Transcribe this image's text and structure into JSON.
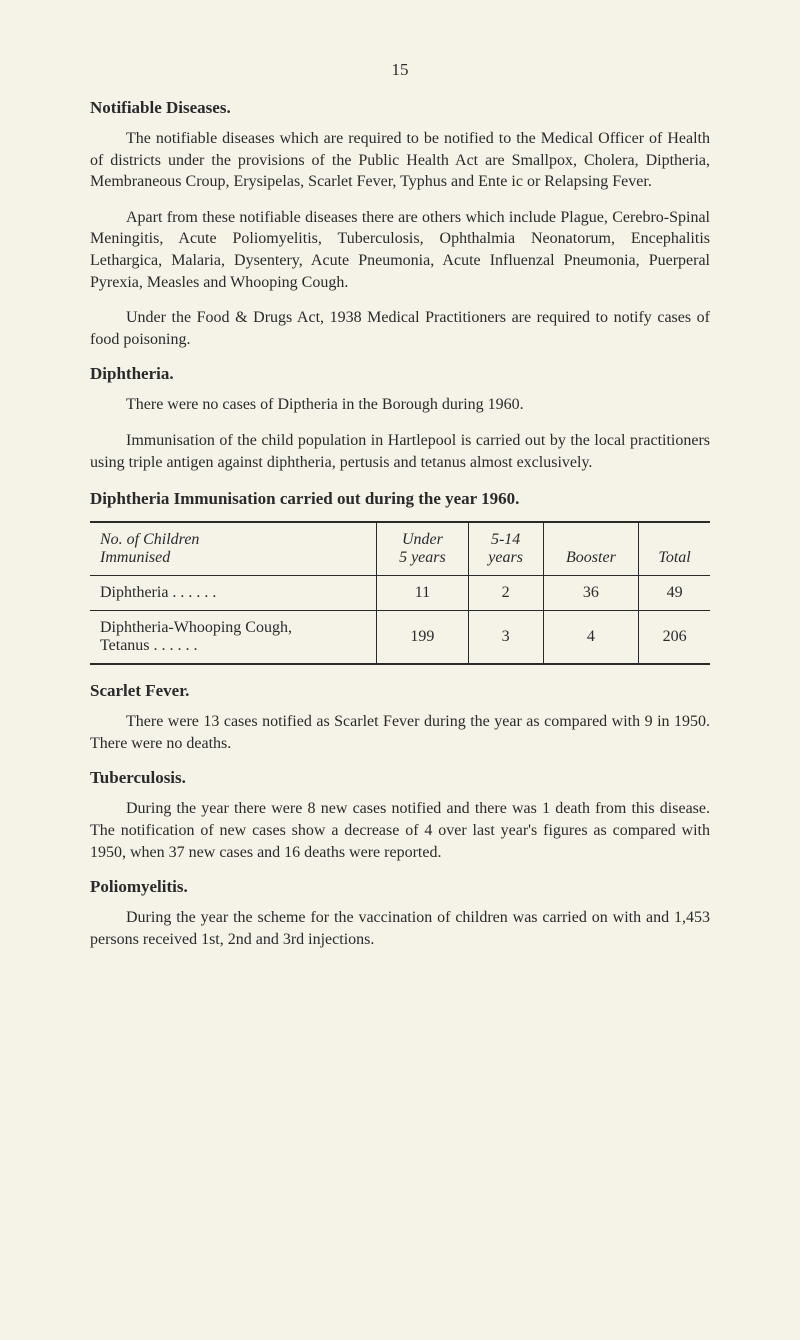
{
  "page": {
    "number": "15",
    "background_color": "#f5f2e8",
    "text_color": "#2a2a2a",
    "font_family": "Georgia, 'Times New Roman', serif",
    "base_fontsize": 16
  },
  "sections": {
    "notifiable": {
      "heading": "Notifiable Diseases.",
      "para1": "The notifiable diseases which are required to be notified to the Medical Officer of Health of districts under the provisions of the Public Health Act are Smallpox, Cholera, Diptheria, Mem­braneous Croup, Erysipelas, Scarlet Fever, Typhus and Ente ic or Relapsing Fever.",
      "para2": "Apart from these notifiable diseases there are others which include Plague, Cerebro-Spinal Meningitis, Acute Poliomyelitis, Tuberculosis, Ophthalmia Neonatorum, Encephalitis Lethargica, Malaria, Dysentery, Acute Pneumonia, Acute Influenzal Pneumonia, Puerperal Pyrexia, Measles and Whooping Cough.",
      "para3": "Under the Food & Drugs Act, 1938 Medical Practitioners are required to notify cases of food poisoning."
    },
    "diphtheria": {
      "heading": "Diphtheria.",
      "para1": "There were no cases of Diptheria in the Borough during 1960.",
      "para2": "Immunisation of the child population in Hartlepool is carried out by the local practitioners using triple antigen against diphtheria, pertusis and tetanus almost exclusively."
    },
    "scarlet": {
      "heading": "Scarlet Fever.",
      "para1": "There were 13 cases notified as Scarlet Fever during the year as compared with 9 in 1950.   There were no deaths."
    },
    "tuberculosis": {
      "heading": "Tuberculosis.",
      "para1": "During the year there were 8 new cases notified and there was 1 death from this disease.   The notification of new cases show a decrease of 4 over last year's figures as compared with 1950, when 37 new cases and 16 deaths were reported."
    },
    "polio": {
      "heading": "Poliomyelitis.",
      "para1": "During the year the scheme for the vaccination of children was carried on with and 1,453 persons received 1st, 2nd and 3rd injections."
    }
  },
  "table": {
    "caption": "Diphtheria Immunisation carried out during the year 1960.",
    "type": "table",
    "border_color": "#2a2a2a",
    "columns": [
      {
        "label_line1": "No. of Children",
        "label_line2": "Immunised",
        "align": "left"
      },
      {
        "label_line1": "Under",
        "label_line2": "5 years",
        "align": "center"
      },
      {
        "label_line1": "5-14",
        "label_line2": "years",
        "align": "center"
      },
      {
        "label_line1": "",
        "label_line2": "Booster",
        "align": "center"
      },
      {
        "label_line1": "",
        "label_line2": "Total",
        "align": "center"
      }
    ],
    "rows": [
      {
        "label": "Diphtheria    . .         . .         . .",
        "values": [
          "11",
          "2",
          "36",
          "49"
        ]
      },
      {
        "label": "Diphtheria-Whooping Cough,\n  Tetanus      . .         . .         . .",
        "values": [
          "199",
          "3",
          "4",
          "206"
        ]
      }
    ]
  }
}
